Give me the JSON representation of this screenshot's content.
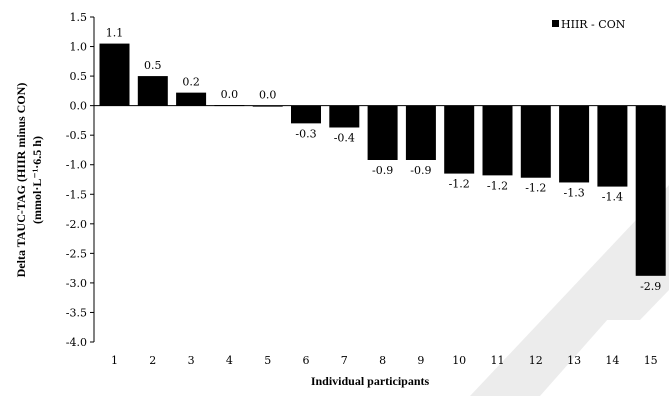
{
  "chart_data": {
    "type": "bar",
    "categories": [
      "1",
      "2",
      "3",
      "4",
      "5",
      "6",
      "7",
      "8",
      "9",
      "10",
      "11",
      "12",
      "13",
      "14",
      "15"
    ],
    "series": [
      {
        "name": "HIIR - CON",
        "color": "#000000",
        "values": [
          1.05,
          0.5,
          0.22,
          0.01,
          0.0,
          -0.3,
          -0.37,
          -0.92,
          -0.92,
          -1.15,
          -1.18,
          -1.22,
          -1.3,
          -1.37,
          -2.88
        ],
        "labels": [
          "1.1",
          "0.5",
          "0.2",
          "0.0",
          "0.0",
          "-0.3",
          "-0.4",
          "-0.9",
          "-0.9",
          "-1.2",
          "-1.2",
          "-1.2",
          "-1.3",
          "-1.4",
          "-2.9"
        ]
      }
    ],
    "ylim": [
      -4.0,
      1.5
    ],
    "yticks": [
      "1.5",
      "1.0",
      "0.5",
      "0.0",
      "-0.5",
      "-1.0",
      "-1.5",
      "-2.0",
      "-2.5",
      "-3.0",
      "-3.5",
      "-4.0"
    ],
    "ytick_values": [
      1.5,
      1.0,
      0.5,
      0.0,
      -0.5,
      -1.0,
      -1.5,
      -2.0,
      -2.5,
      -3.0,
      -3.5,
      -4.0
    ],
    "xlabel": "Individual participants",
    "ylabel_line1": "Delta TAUC-TAG (HIIR minus CON)",
    "ylabel_line2": "(mmol·L⁻¹·6.5 h)",
    "legend": {
      "label": "HIIR - CON",
      "position": "top-right"
    },
    "grid": false
  }
}
